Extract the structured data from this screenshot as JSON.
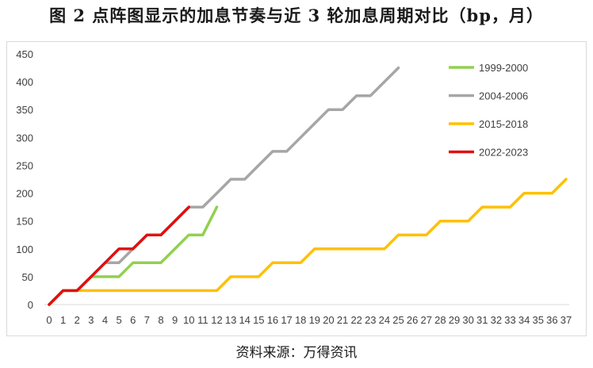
{
  "title": "图 2 点阵图显示的加息节奏与近 3 轮加息周期对比（bp，月）",
  "source": "资料来源：万得资讯",
  "chart_data": {
    "type": "line",
    "x": [
      0,
      1,
      2,
      3,
      4,
      5,
      6,
      7,
      8,
      9,
      10,
      11,
      12,
      13,
      14,
      15,
      16,
      17,
      18,
      19,
      20,
      21,
      22,
      23,
      24,
      25,
      26,
      27,
      28,
      29,
      30,
      31,
      32,
      33,
      34,
      35,
      36,
      37
    ],
    "xlim": [
      0,
      37
    ],
    "ylim": [
      0,
      450
    ],
    "yticks": [
      0,
      50,
      100,
      150,
      200,
      250,
      300,
      350,
      400,
      450
    ],
    "legend_position": "top-right",
    "grid": false,
    "series": [
      {
        "name": "1999-2000",
        "color": "#92d050",
        "x": [
          0,
          1,
          2,
          3,
          4,
          5,
          6,
          7,
          8,
          9,
          10,
          11,
          12
        ],
        "values": [
          0,
          25,
          25,
          50,
          50,
          50,
          75,
          75,
          75,
          100,
          125,
          125,
          175
        ]
      },
      {
        "name": "2004-2006",
        "color": "#a6a6a6",
        "x": [
          0,
          1,
          2,
          3,
          4,
          5,
          6,
          7,
          8,
          9,
          10,
          11,
          12,
          13,
          14,
          15,
          16,
          17,
          18,
          19,
          20,
          21,
          22,
          23,
          24,
          25
        ],
        "values": [
          0,
          25,
          25,
          50,
          75,
          75,
          100,
          125,
          125,
          150,
          175,
          175,
          200,
          225,
          225,
          250,
          275,
          275,
          300,
          325,
          350,
          350,
          375,
          375,
          400,
          425
        ]
      },
      {
        "name": "2015-2018",
        "color": "#ffc000",
        "x": [
          0,
          1,
          2,
          3,
          4,
          5,
          6,
          7,
          8,
          9,
          10,
          11,
          12,
          13,
          14,
          15,
          16,
          17,
          18,
          19,
          20,
          21,
          22,
          23,
          24,
          25,
          26,
          27,
          28,
          29,
          30,
          31,
          32,
          33,
          34,
          35,
          36,
          37
        ],
        "values": [
          0,
          25,
          25,
          25,
          25,
          25,
          25,
          25,
          25,
          25,
          25,
          25,
          25,
          50,
          50,
          50,
          75,
          75,
          75,
          100,
          100,
          100,
          100,
          100,
          100,
          125,
          125,
          125,
          150,
          150,
          150,
          175,
          175,
          175,
          200,
          200,
          200,
          225
        ]
      },
      {
        "name": "2022-2023",
        "color": "#e01010",
        "x": [
          0,
          1,
          2,
          3,
          4,
          5,
          6,
          7,
          8,
          9,
          10
        ],
        "values": [
          0,
          25,
          25,
          50,
          75,
          100,
          100,
          125,
          125,
          150,
          175
        ]
      }
    ]
  }
}
